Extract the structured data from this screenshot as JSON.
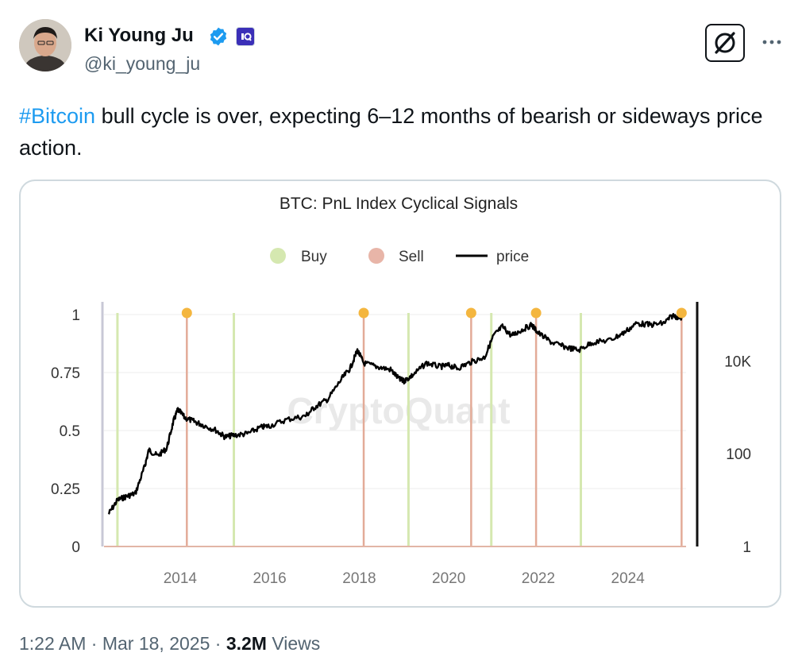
{
  "author": {
    "name": "Ki Young Ju",
    "handle": "@ki_young_ju",
    "avatar_icon": "person-avatar",
    "verified_icon": "verified-badge-icon",
    "affiliate_icon": "cryptoquant-affiliate-icon",
    "verified_color": "#1d9bf0"
  },
  "actions": {
    "grok_icon": "grok-icon",
    "more_icon": "more-dots-icon"
  },
  "tweet": {
    "hashtag": "#Bitcoin",
    "text": " bull cycle is over, expecting 6–12 months of bearish or sideways price action.",
    "hashtag_color": "#1d9bf0"
  },
  "meta": {
    "time": "1:22 AM",
    "sep1": " · ",
    "date": "Mar 18, 2025",
    "sep2": " · ",
    "views_count": "3.2M",
    "views_label": " Views"
  },
  "chart_data": {
    "type": "line",
    "title": "BTC: PnL Index Cyclical Signals",
    "watermark": "CryptoQuant",
    "legend": {
      "placement": "top-center",
      "items": [
        {
          "name": "Buy",
          "color": "#d5e8b0"
        },
        {
          "name": "Sell",
          "color": "#e8b5a8"
        },
        {
          "name": "price",
          "color": "#000000"
        }
      ]
    },
    "x_axis": {
      "range": [
        2012.3,
        2025.3
      ],
      "ticks": [
        "2014",
        "2016",
        "2018",
        "2020",
        "2022",
        "2024"
      ]
    },
    "y_left": {
      "range": [
        0,
        1
      ],
      "ticks": [
        "0",
        "0.25",
        "0.5",
        "0.75",
        "1"
      ]
    },
    "y_right": {
      "scale": "log",
      "range": [
        1,
        100000
      ],
      "ticks": [
        "1",
        "100",
        "10K"
      ]
    },
    "grid": "horizontal",
    "buy_signals": [
      2012.6,
      2015.2,
      2019.1,
      2020.95,
      2022.95
    ],
    "sell_signals": [
      2014.15,
      2018.1,
      2020.5,
      2021.95,
      2025.2
    ],
    "sell_marker_color": "#f4b63f",
    "price_series": {
      "name": "price",
      "x": [
        2012.4,
        2012.6,
        2012.8,
        2013.0,
        2013.2,
        2013.3,
        2013.5,
        2013.7,
        2013.85,
        2013.95,
        2014.1,
        2014.3,
        2014.5,
        2014.8,
        2015.0,
        2015.2,
        2015.5,
        2015.8,
        2016.0,
        2016.4,
        2016.8,
        2017.0,
        2017.3,
        2017.6,
        2017.8,
        2017.96,
        2018.1,
        2018.4,
        2018.7,
        2018.9,
        2019.0,
        2019.2,
        2019.5,
        2019.8,
        2020.0,
        2020.2,
        2020.5,
        2020.8,
        2021.0,
        2021.2,
        2021.4,
        2021.6,
        2021.85,
        2022.0,
        2022.3,
        2022.6,
        2022.9,
        2023.2,
        2023.6,
        2023.9,
        2024.2,
        2024.5,
        2024.8,
        2025.0,
        2025.2
      ],
      "y": [
        5,
        10,
        12,
        14,
        50,
        120,
        90,
        130,
        500,
        900,
        600,
        500,
        420,
        320,
        230,
        250,
        270,
        370,
        400,
        550,
        650,
        1000,
        1500,
        4000,
        7000,
        17000,
        9000,
        7500,
        6500,
        4000,
        3700,
        5000,
        9000,
        7500,
        8000,
        7000,
        9500,
        12000,
        35000,
        55000,
        35000,
        45000,
        60000,
        40000,
        25000,
        20000,
        17000,
        25000,
        28000,
        40000,
        65000,
        60000,
        65000,
        95000,
        85000
      ]
    }
  }
}
